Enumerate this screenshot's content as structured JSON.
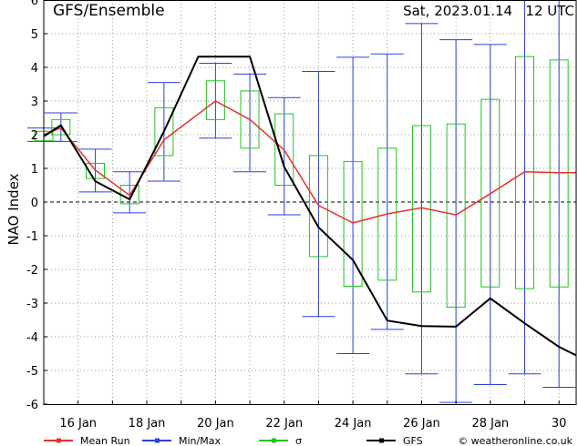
{
  "title_left": "GFS/Ensemble",
  "title_right": "Sat, 2023.01.14   12 UTC",
  "ylabel": "NAO Index",
  "footer": {
    "legend": [
      {
        "name": "Mean Run",
        "color": "#e8312b"
      },
      {
        "name": "Min/Max",
        "color": "#2b41e0"
      },
      {
        "name": "σ",
        "color": "#22c322"
      },
      {
        "name": "GFS",
        "color": "#000000"
      }
    ],
    "credit": "© weatheronline.co.uk"
  },
  "chart_data": {
    "type": "line",
    "ylim": [
      -6,
      6
    ],
    "xlim": [
      15,
      30.5
    ],
    "yticks": [
      -6,
      -5,
      -4,
      -3,
      -2,
      -1,
      0,
      1,
      2,
      3,
      4,
      5,
      6
    ],
    "xticks": [
      {
        "x": 16,
        "label": "16 Jan"
      },
      {
        "x": 18,
        "label": "18 Jan"
      },
      {
        "x": 20,
        "label": "20 Jan"
      },
      {
        "x": 22,
        "label": "22 Jan"
      },
      {
        "x": 24,
        "label": "24 Jan"
      },
      {
        "x": 26,
        "label": "26 Jan"
      },
      {
        "x": 28,
        "label": "28 Jan"
      },
      {
        "x": 30,
        "label": "30"
      }
    ],
    "grid": true,
    "zero_line": "dashed",
    "x": [
      15,
      15.5,
      16.5,
      17.5,
      18.5,
      19.5,
      20,
      21,
      22,
      23,
      24,
      25,
      26,
      27,
      28,
      29,
      30,
      30.5
    ],
    "mean": [
      2.0,
      2.2,
      0.95,
      0.2,
      1.85,
      null,
      3.0,
      2.45,
      1.55,
      -0.1,
      -0.62,
      -0.35,
      -0.17,
      -0.38,
      0.25,
      0.9,
      0.87,
      0.87
    ],
    "minmax": [
      {
        "x": 15.0,
        "min": 1.8,
        "max": 2.2
      },
      {
        "x": 15.5,
        "min": 1.8,
        "max": 2.65
      },
      {
        "x": 16.5,
        "min": 0.3,
        "max": 1.57
      },
      {
        "x": 17.5,
        "min": -0.32,
        "max": 0.9
      },
      {
        "x": 18.5,
        "min": 0.62,
        "max": 3.55
      },
      {
        "x": 20.0,
        "min": 1.9,
        "max": 4.12
      },
      {
        "x": 21.0,
        "min": 0.9,
        "max": 3.8
      },
      {
        "x": 22.0,
        "min": -0.38,
        "max": 3.1
      },
      {
        "x": 23.0,
        "min": -3.4,
        "max": 3.88
      },
      {
        "x": 24.0,
        "min": -4.5,
        "max": 4.3
      },
      {
        "x": 25.0,
        "min": -3.78,
        "max": 4.4
      },
      {
        "x": 26.0,
        "min": -5.1,
        "max": 5.3
      },
      {
        "x": 27.0,
        "min": -5.95,
        "max": 4.82
      },
      {
        "x": 28.0,
        "min": -5.42,
        "max": 4.68
      },
      {
        "x": 29.0,
        "min": -5.1,
        "max": 6.0
      },
      {
        "x": 30.0,
        "min": -5.5,
        "max": 6.0
      }
    ],
    "sigma": [
      {
        "x": 15.0,
        "low": 1.82,
        "high": 2.1
      },
      {
        "x": 15.5,
        "low": 2.0,
        "high": 2.45
      },
      {
        "x": 16.5,
        "low": 0.7,
        "high": 1.15
      },
      {
        "x": 17.5,
        "low": -0.05,
        "high": 0.5
      },
      {
        "x": 18.5,
        "low": 1.38,
        "high": 2.8
      },
      {
        "x": 20.0,
        "low": 2.45,
        "high": 3.6
      },
      {
        "x": 21.0,
        "low": 1.6,
        "high": 3.3
      },
      {
        "x": 22.0,
        "low": 0.5,
        "high": 2.62
      },
      {
        "x": 23.0,
        "low": -1.62,
        "high": 1.38
      },
      {
        "x": 24.0,
        "low": -2.5,
        "high": 1.2
      },
      {
        "x": 25.0,
        "low": -2.32,
        "high": 1.6
      },
      {
        "x": 26.0,
        "low": -2.67,
        "high": 2.27
      },
      {
        "x": 27.0,
        "low": -3.12,
        "high": 2.32
      },
      {
        "x": 28.0,
        "low": -2.52,
        "high": 3.05
      },
      {
        "x": 29.0,
        "low": -2.57,
        "high": 4.32
      },
      {
        "x": 30.0,
        "low": -2.52,
        "high": 4.22
      }
    ],
    "gfs": {
      "x": [
        15,
        15.5,
        16.5,
        17.5,
        18.5,
        19.5,
        20,
        21,
        22,
        23,
        24,
        25,
        26,
        27,
        28,
        29,
        30,
        30.5
      ],
      "y": [
        1.95,
        2.28,
        0.62,
        0.08,
        2.1,
        4.32,
        4.32,
        4.32,
        1.05,
        -0.75,
        -1.72,
        -3.52,
        -3.68,
        -3.7,
        -2.86,
        -3.6,
        -4.3,
        -4.55
      ]
    }
  }
}
